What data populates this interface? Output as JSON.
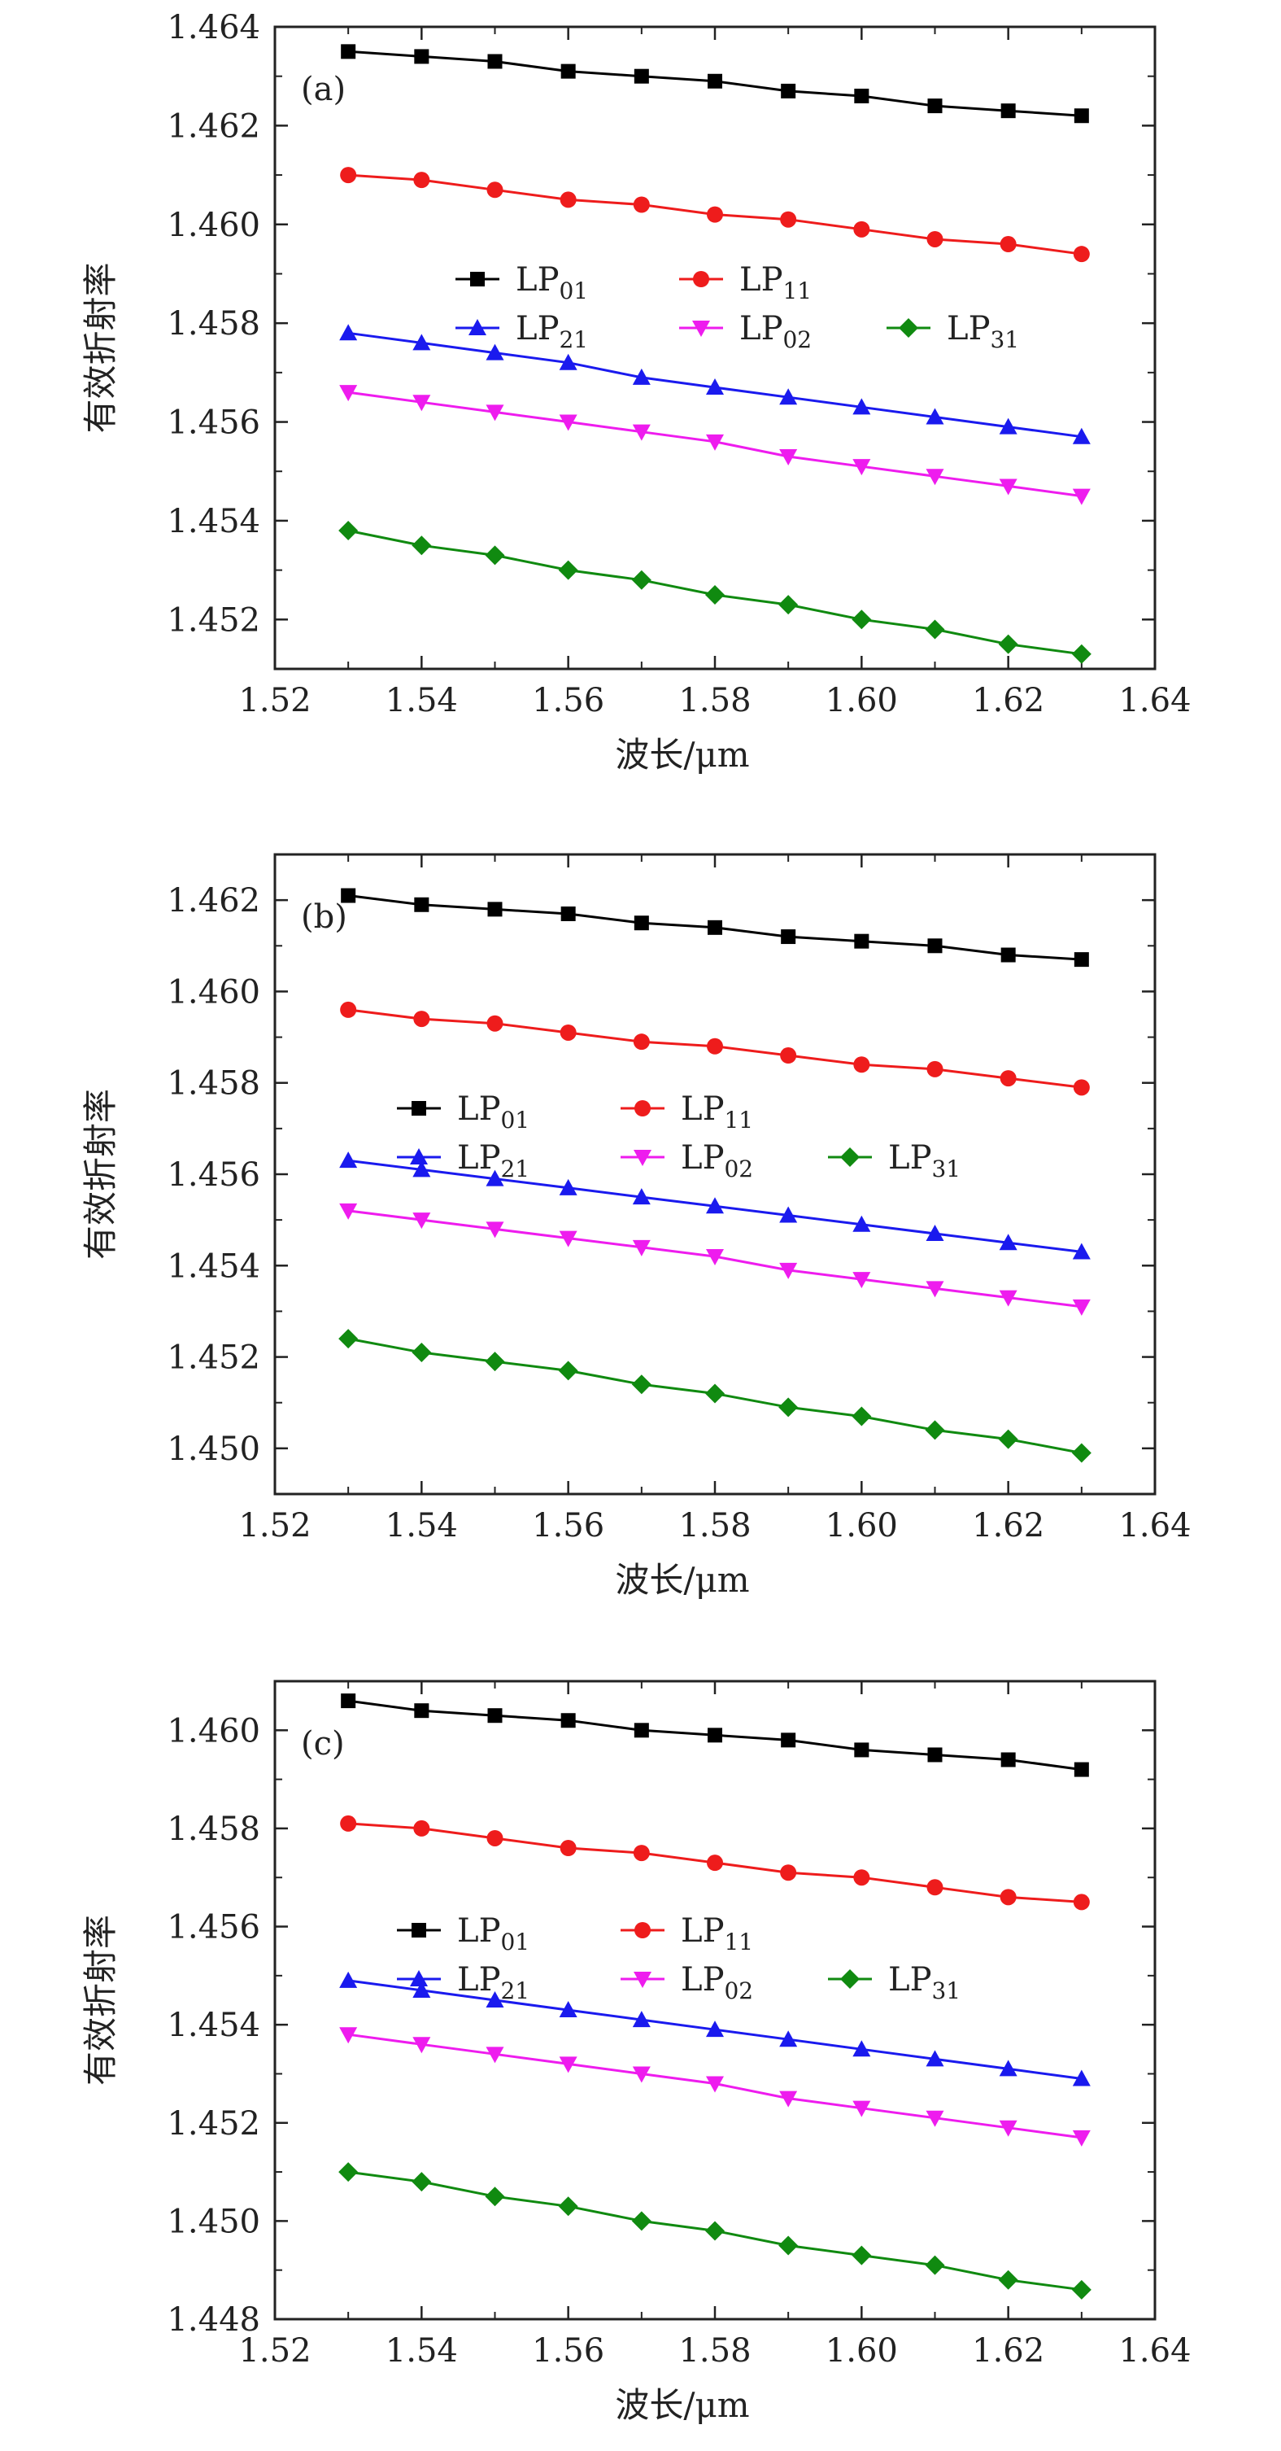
{
  "figure": {
    "x_ticks": [
      "1.52",
      "1.54",
      "1.56",
      "1.58",
      "1.60",
      "1.62",
      "1.64"
    ]
  },
  "chart_data": [
    {
      "type": "line",
      "panel_label": "(a)",
      "xlabel": "波长/μm",
      "ylabel": "有效折射率",
      "xlim": [
        1.52,
        1.64
      ],
      "ylim": [
        1.451,
        1.464
      ],
      "y_ticks": [
        "1.452",
        "1.454",
        "1.456",
        "1.458",
        "1.460",
        "1.462",
        "1.464"
      ],
      "x": [
        1.53,
        1.54,
        1.55,
        1.56,
        1.57,
        1.58,
        1.59,
        1.6,
        1.61,
        1.62,
        1.63
      ],
      "legend_placement": "center",
      "series": [
        {
          "name": "LP",
          "sub": "01",
          "color": "#000000",
          "marker": "square",
          "values": [
            1.4635,
            1.4634,
            1.4633,
            1.4631,
            1.463,
            1.4629,
            1.4627,
            1.4626,
            1.4624,
            1.4623,
            1.4622
          ]
        },
        {
          "name": "LP",
          "sub": "11",
          "color": "#ee1c1c",
          "marker": "circle",
          "values": [
            1.461,
            1.4609,
            1.4607,
            1.4605,
            1.4604,
            1.4602,
            1.4601,
            1.4599,
            1.4597,
            1.4596,
            1.4594
          ]
        },
        {
          "name": "LP",
          "sub": "21",
          "color": "#1a1aee",
          "marker": "triangle-up",
          "values": [
            1.4578,
            1.4576,
            1.4574,
            1.4572,
            1.4569,
            1.4567,
            1.4565,
            1.4563,
            1.4561,
            1.4559,
            1.4557
          ]
        },
        {
          "name": "LP",
          "sub": "02",
          "color": "#ee1cee",
          "marker": "triangle-down",
          "values": [
            1.4566,
            1.4564,
            1.4562,
            1.456,
            1.4558,
            1.4556,
            1.4553,
            1.4551,
            1.4549,
            1.4547,
            1.4545
          ]
        },
        {
          "name": "LP",
          "sub": "31",
          "color": "#108a10",
          "marker": "diamond",
          "values": [
            1.4538,
            1.4535,
            1.4533,
            1.453,
            1.4528,
            1.4525,
            1.4523,
            1.452,
            1.4518,
            1.4515,
            1.4513
          ]
        }
      ]
    },
    {
      "type": "line",
      "panel_label": "(b)",
      "xlabel": "波长/μm",
      "ylabel": "有效折射率",
      "xlim": [
        1.52,
        1.64
      ],
      "ylim": [
        1.449,
        1.463
      ],
      "y_ticks": [
        "1.450",
        "1.452",
        "1.454",
        "1.456",
        "1.458",
        "1.460",
        "1.462"
      ],
      "x": [
        1.53,
        1.54,
        1.55,
        1.56,
        1.57,
        1.58,
        1.59,
        1.6,
        1.61,
        1.62,
        1.63
      ],
      "legend_placement": "center",
      "series": [
        {
          "name": "LP",
          "sub": "01",
          "color": "#000000",
          "marker": "square",
          "values": [
            1.4621,
            1.4619,
            1.4618,
            1.4617,
            1.4615,
            1.4614,
            1.4612,
            1.4611,
            1.461,
            1.4608,
            1.4607
          ]
        },
        {
          "name": "LP",
          "sub": "11",
          "color": "#ee1c1c",
          "marker": "circle",
          "values": [
            1.4596,
            1.4594,
            1.4593,
            1.4591,
            1.4589,
            1.4588,
            1.4586,
            1.4584,
            1.4583,
            1.4581,
            1.4579
          ]
        },
        {
          "name": "LP",
          "sub": "21",
          "color": "#1a1aee",
          "marker": "triangle-up",
          "values": [
            1.4563,
            1.4561,
            1.4559,
            1.4557,
            1.4555,
            1.4553,
            1.4551,
            1.4549,
            1.4547,
            1.4545,
            1.4543
          ]
        },
        {
          "name": "LP",
          "sub": "02",
          "color": "#ee1cee",
          "marker": "triangle-down",
          "values": [
            1.4552,
            1.455,
            1.4548,
            1.4546,
            1.4544,
            1.4542,
            1.4539,
            1.4537,
            1.4535,
            1.4533,
            1.4531
          ]
        },
        {
          "name": "LP",
          "sub": "31",
          "color": "#108a10",
          "marker": "diamond",
          "values": [
            1.4524,
            1.4521,
            1.4519,
            1.4517,
            1.4514,
            1.4512,
            1.4509,
            1.4507,
            1.4504,
            1.4502,
            1.4499
          ]
        }
      ]
    },
    {
      "type": "line",
      "panel_label": "(c)",
      "xlabel": "波长/μm",
      "ylabel": "有效折射率",
      "xlim": [
        1.52,
        1.64
      ],
      "ylim": [
        1.448,
        1.461
      ],
      "y_ticks": [
        "1.448",
        "1.450",
        "1.452",
        "1.454",
        "1.456",
        "1.458",
        "1.460"
      ],
      "x": [
        1.53,
        1.54,
        1.55,
        1.56,
        1.57,
        1.58,
        1.59,
        1.6,
        1.61,
        1.62,
        1.63
      ],
      "legend_placement": "center",
      "series": [
        {
          "name": "LP",
          "sub": "01",
          "color": "#000000",
          "marker": "square",
          "values": [
            1.4606,
            1.4604,
            1.4603,
            1.4602,
            1.46,
            1.4599,
            1.4598,
            1.4596,
            1.4595,
            1.4594,
            1.4592
          ]
        },
        {
          "name": "LP",
          "sub": "11",
          "color": "#ee1c1c",
          "marker": "circle",
          "values": [
            1.4581,
            1.458,
            1.4578,
            1.4576,
            1.4575,
            1.4573,
            1.4571,
            1.457,
            1.4568,
            1.4566,
            1.4565
          ]
        },
        {
          "name": "LP",
          "sub": "21",
          "color": "#1a1aee",
          "marker": "triangle-up",
          "values": [
            1.4549,
            1.4547,
            1.4545,
            1.4543,
            1.4541,
            1.4539,
            1.4537,
            1.4535,
            1.4533,
            1.4531,
            1.4529
          ]
        },
        {
          "name": "LP",
          "sub": "02",
          "color": "#ee1cee",
          "marker": "triangle-down",
          "values": [
            1.4538,
            1.4536,
            1.4534,
            1.4532,
            1.453,
            1.4528,
            1.4525,
            1.4523,
            1.4521,
            1.4519,
            1.4517
          ]
        },
        {
          "name": "LP",
          "sub": "31",
          "color": "#108a10",
          "marker": "diamond",
          "values": [
            1.451,
            1.4508,
            1.4505,
            1.4503,
            1.45,
            1.4498,
            1.4495,
            1.4493,
            1.4491,
            1.4488,
            1.4486
          ]
        }
      ]
    }
  ]
}
